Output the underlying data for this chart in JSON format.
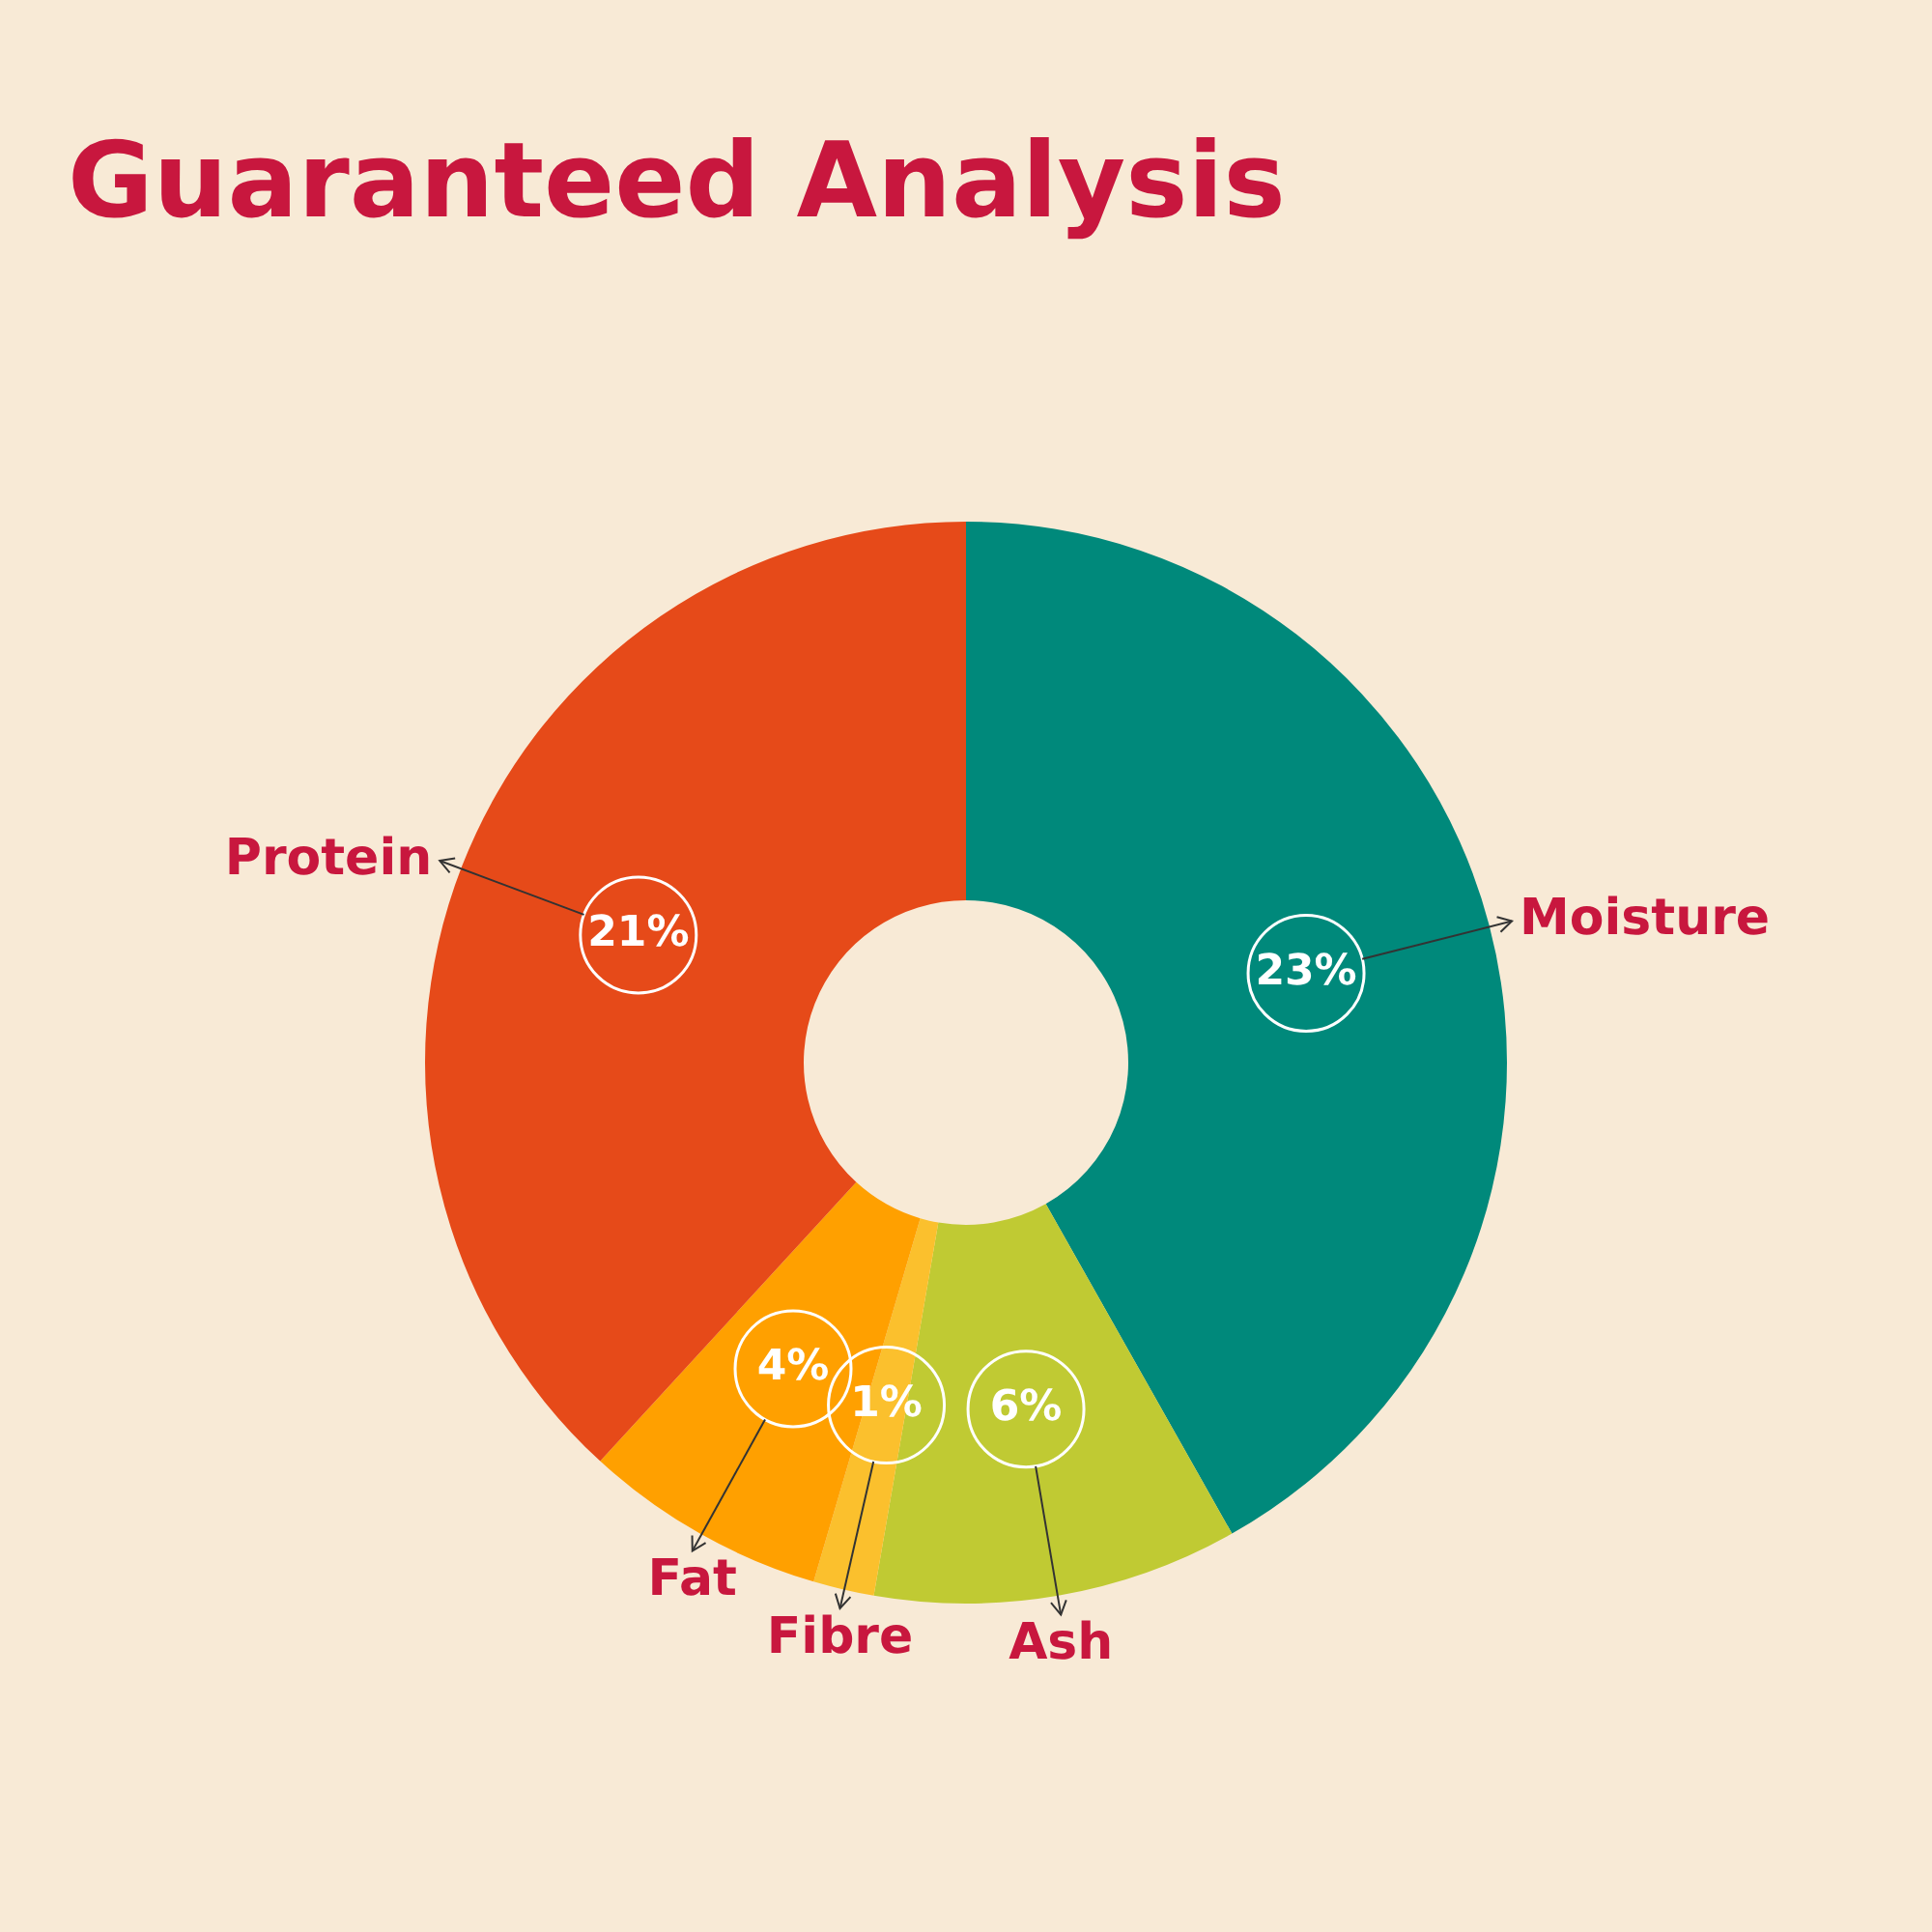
{
  "chart_data": {
    "type": "donut",
    "title": "Guaranteed Analysis",
    "categories": [
      "Moisture",
      "Ash",
      "Fibre",
      "Fat",
      "Protein"
    ],
    "values": [
      23,
      6,
      1,
      4,
      21
    ],
    "value_labels": [
      "23%",
      "6%",
      "1%",
      "4%",
      "21%"
    ],
    "colors": [
      "#00897b",
      "#c0ca33",
      "#fbc02d",
      "#ffa000",
      "#e64a19"
    ],
    "legend": false
  }
}
